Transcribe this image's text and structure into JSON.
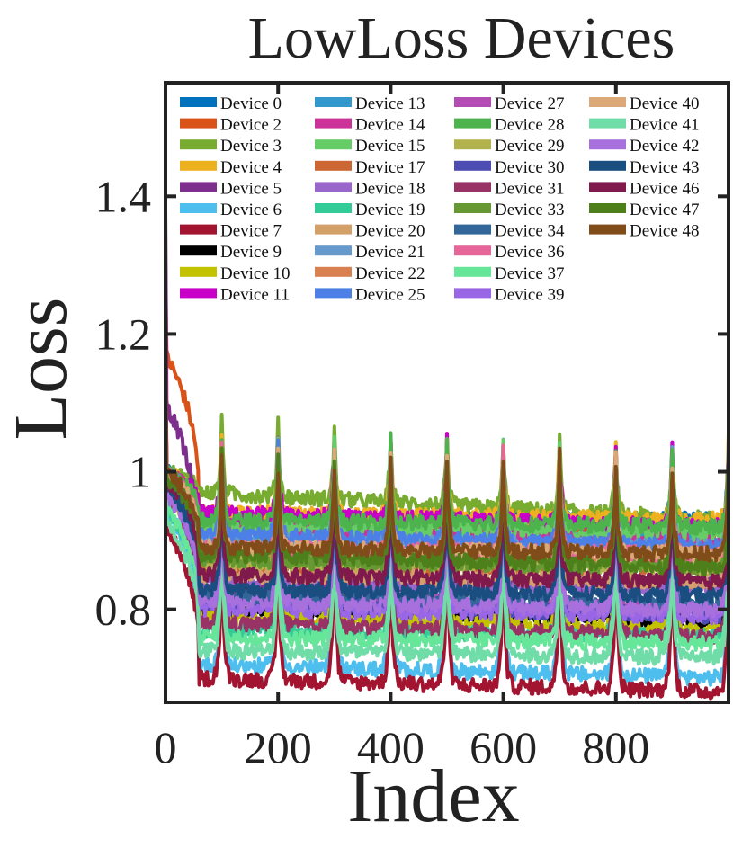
{
  "chart_data": {
    "type": "line",
    "title": "LowLoss Devices",
    "xlabel": "Index",
    "ylabel": "Loss",
    "xlim": [
      0,
      1000
    ],
    "ylim": [
      0.665,
      1.565
    ],
    "xticks": [
      0,
      200,
      400,
      600,
      800
    ],
    "xtick_labels": [
      "0",
      "200",
      "400",
      "600",
      "800"
    ],
    "yticks": [
      0.8,
      1.0,
      1.2,
      1.4
    ],
    "ytick_labels": [
      "0.8",
      "1",
      "1.2",
      "1.4"
    ],
    "grid": false,
    "legend_position": "top",
    "legend_columns": 4,
    "peak_interval": 100,
    "series": [
      {
        "name": "Device 0",
        "color": "#0072BD",
        "start": 1.0,
        "mid": 0.93,
        "end": 0.93
      },
      {
        "name": "Device 2",
        "color": "#D95319",
        "start": 1.17,
        "mid": 0.92,
        "end": 0.91
      },
      {
        "name": "Device 3",
        "color": "#77AC30",
        "start": 1.0,
        "mid": 0.97,
        "end": 0.93
      },
      {
        "name": "Device 4",
        "color": "#EDB120",
        "start": 1.0,
        "mid": 0.94,
        "end": 0.93
      },
      {
        "name": "Device 5",
        "color": "#7E2F8E",
        "start": 1.1,
        "mid": 0.83,
        "end": 0.84
      },
      {
        "name": "Device 6",
        "color": "#4DBEEE",
        "start": 0.95,
        "mid": 0.72,
        "end": 0.7
      },
      {
        "name": "Device 7",
        "color": "#A2142F",
        "start": 0.92,
        "mid": 0.7,
        "end": 0.68
      },
      {
        "name": "Device 9",
        "color": "#000000",
        "start": 1.0,
        "mid": 0.8,
        "end": 0.78
      },
      {
        "name": "Device 10",
        "color": "#C2C200",
        "start": 0.98,
        "mid": 0.79,
        "end": 0.77
      },
      {
        "name": "Device 11",
        "color": "#C800C8",
        "start": 1.0,
        "mid": 0.94,
        "end": 0.92
      },
      {
        "name": "Device 13",
        "color": "#3399CC",
        "start": 1.0,
        "mid": 0.91,
        "end": 0.9
      },
      {
        "name": "Device 14",
        "color": "#CC3399",
        "start": 1.0,
        "mid": 0.92,
        "end": 0.9
      },
      {
        "name": "Device 15",
        "color": "#66CC66",
        "start": 0.99,
        "mid": 0.92,
        "end": 0.91
      },
      {
        "name": "Device 17",
        "color": "#CC6633",
        "start": 1.0,
        "mid": 0.86,
        "end": 0.86
      },
      {
        "name": "Device 18",
        "color": "#9966CC",
        "start": 0.98,
        "mid": 0.84,
        "end": 0.83
      },
      {
        "name": "Device 19",
        "color": "#33CC99",
        "start": 0.95,
        "mid": 0.77,
        "end": 0.76
      },
      {
        "name": "Device 20",
        "color": "#D4A06A",
        "start": 1.0,
        "mid": 0.85,
        "end": 0.84
      },
      {
        "name": "Device 21",
        "color": "#6699CC",
        "start": 1.0,
        "mid": 0.9,
        "end": 0.89
      },
      {
        "name": "Device 22",
        "color": "#D98050",
        "start": 1.0,
        "mid": 0.88,
        "end": 0.87
      },
      {
        "name": "Device 25",
        "color": "#4D80E6",
        "start": 1.0,
        "mid": 0.91,
        "end": 0.89
      },
      {
        "name": "Device 27",
        "color": "#B34DB3",
        "start": 0.98,
        "mid": 0.82,
        "end": 0.8
      },
      {
        "name": "Device 28",
        "color": "#4DB34D",
        "start": 1.0,
        "mid": 0.93,
        "end": 0.92
      },
      {
        "name": "Device 29",
        "color": "#B3B34D",
        "start": 0.98,
        "mid": 0.87,
        "end": 0.86
      },
      {
        "name": "Device 30",
        "color": "#4D4DB3",
        "start": 0.98,
        "mid": 0.81,
        "end": 0.79
      },
      {
        "name": "Device 31",
        "color": "#993366",
        "start": 0.97,
        "mid": 0.78,
        "end": 0.76
      },
      {
        "name": "Device 33",
        "color": "#669933",
        "start": 0.99,
        "mid": 0.87,
        "end": 0.86
      },
      {
        "name": "Device 34",
        "color": "#336699",
        "start": 0.98,
        "mid": 0.82,
        "end": 0.81
      },
      {
        "name": "Device 36",
        "color": "#E6669A",
        "start": 1.0,
        "mid": 0.89,
        "end": 0.88
      },
      {
        "name": "Device 37",
        "color": "#66E699",
        "start": 0.95,
        "mid": 0.76,
        "end": 0.75
      },
      {
        "name": "Device 39",
        "color": "#9966E6",
        "start": 0.97,
        "mid": 0.8,
        "end": 0.79
      },
      {
        "name": "Device 40",
        "color": "#DDA878",
        "start": 1.0,
        "mid": 0.89,
        "end": 0.88
      },
      {
        "name": "Device 41",
        "color": "#70DDA8",
        "start": 0.93,
        "mid": 0.74,
        "end": 0.73
      },
      {
        "name": "Device 42",
        "color": "#A870DD",
        "start": 0.97,
        "mid": 0.81,
        "end": 0.8
      },
      {
        "name": "Device 43",
        "color": "#1A4D80",
        "start": 0.98,
        "mid": 0.83,
        "end": 0.82
      },
      {
        "name": "Device 46",
        "color": "#801A4D",
        "start": 0.99,
        "mid": 0.85,
        "end": 0.84
      },
      {
        "name": "Device 47",
        "color": "#4D801A",
        "start": 0.99,
        "mid": 0.88,
        "end": 0.86
      },
      {
        "name": "Device 48",
        "color": "#804D1A",
        "start": 1.0,
        "mid": 0.89,
        "end": 0.88
      }
    ]
  }
}
